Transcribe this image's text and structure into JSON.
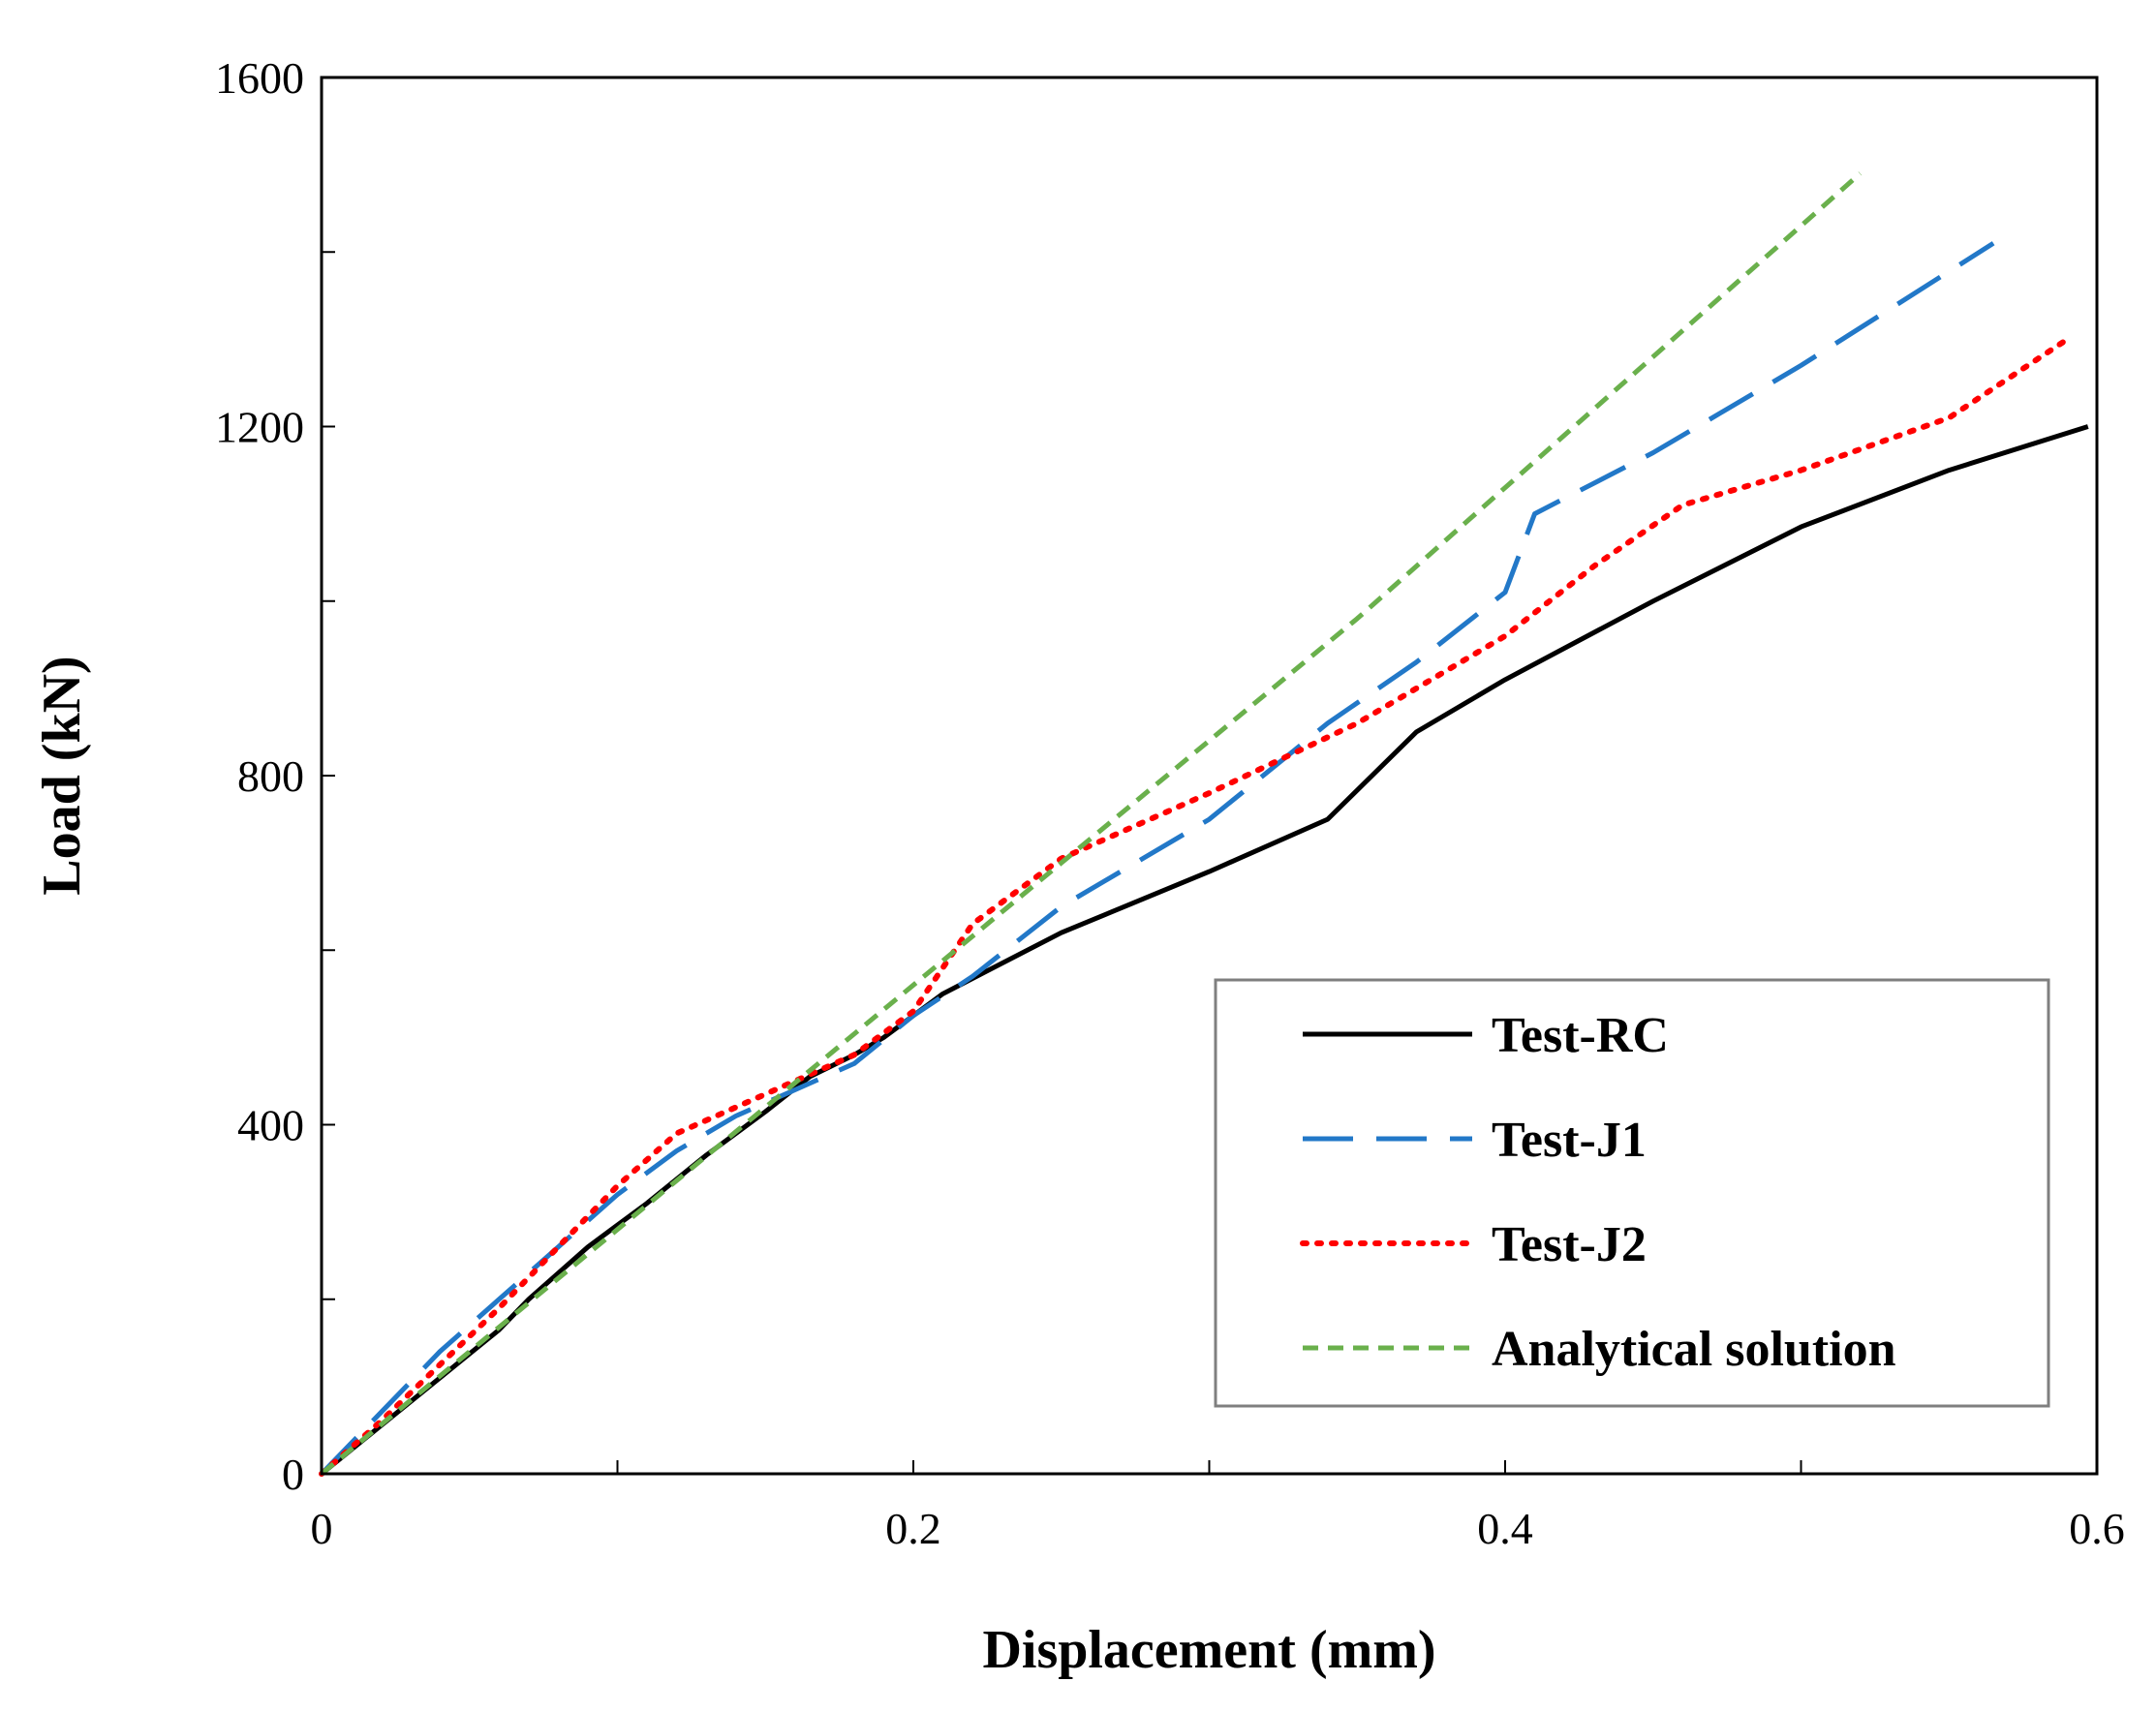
{
  "chart_data": {
    "type": "line",
    "title": "",
    "xlabel": "Displacement (mm)",
    "ylabel": "Load (kN)",
    "xlim": [
      0,
      0.6
    ],
    "ylim": [
      0,
      1600
    ],
    "xticks": [
      0,
      0.2,
      0.4,
      0.6
    ],
    "xtick_labels": [
      "0",
      "0.2",
      "0.4",
      "0.6"
    ],
    "xminor_ticks": [
      0.1,
      0.3,
      0.5
    ],
    "yticks": [
      0,
      400,
      800,
      1200,
      1600
    ],
    "ytick_labels": [
      "0",
      "400",
      "800",
      "1200",
      "1600"
    ],
    "yminor_ticks": [
      200,
      600,
      1000,
      1400
    ],
    "grid": false,
    "legend_position": "bottom-right",
    "series": [
      {
        "name": "Test-RC",
        "color": "#000000",
        "style": "solid",
        "x": [
          0,
          0.02,
          0.04,
          0.06,
          0.07,
          0.09,
          0.11,
          0.13,
          0.15,
          0.165,
          0.18,
          0.19,
          0.21,
          0.25,
          0.3,
          0.34,
          0.37,
          0.4,
          0.45,
          0.5,
          0.55,
          0.597
        ],
        "y": [
          0,
          55,
          110,
          165,
          200,
          260,
          310,
          365,
          415,
          455,
          480,
          500,
          550,
          620,
          690,
          750,
          850,
          910,
          1000,
          1085,
          1150,
          1200
        ]
      },
      {
        "name": "Test-J1",
        "color": "#2278c8",
        "style": "dashed",
        "x": [
          0,
          0.02,
          0.04,
          0.06,
          0.08,
          0.1,
          0.12,
          0.14,
          0.16,
          0.18,
          0.2,
          0.22,
          0.25,
          0.3,
          0.34,
          0.37,
          0.4,
          0.41,
          0.45,
          0.5,
          0.565
        ],
        "y": [
          0,
          70,
          140,
          200,
          260,
          320,
          370,
          410,
          440,
          470,
          525,
          570,
          650,
          750,
          860,
          930,
          1010,
          1100,
          1170,
          1270,
          1410
        ]
      },
      {
        "name": "Test-J2",
        "color": "#ff0000",
        "style": "dotted",
        "x": [
          0,
          0.02,
          0.04,
          0.06,
          0.08,
          0.1,
          0.12,
          0.14,
          0.16,
          0.18,
          0.2,
          0.22,
          0.25,
          0.3,
          0.35,
          0.4,
          0.43,
          0.46,
          0.5,
          0.55,
          0.59
        ],
        "y": [
          0,
          60,
          125,
          190,
          260,
          330,
          390,
          420,
          450,
          480,
          530,
          630,
          705,
          780,
          860,
          960,
          1040,
          1110,
          1150,
          1210,
          1300
        ]
      },
      {
        "name": "Analytical solution",
        "color": "#6ab04c",
        "style": "short-dashed",
        "x": [
          0,
          0.05,
          0.1,
          0.15,
          0.2,
          0.25,
          0.3,
          0.35,
          0.4,
          0.45,
          0.52
        ],
        "y": [
          0,
          140,
          280,
          420,
          560,
          700,
          840,
          980,
          1130,
          1280,
          1490
        ]
      }
    ]
  }
}
